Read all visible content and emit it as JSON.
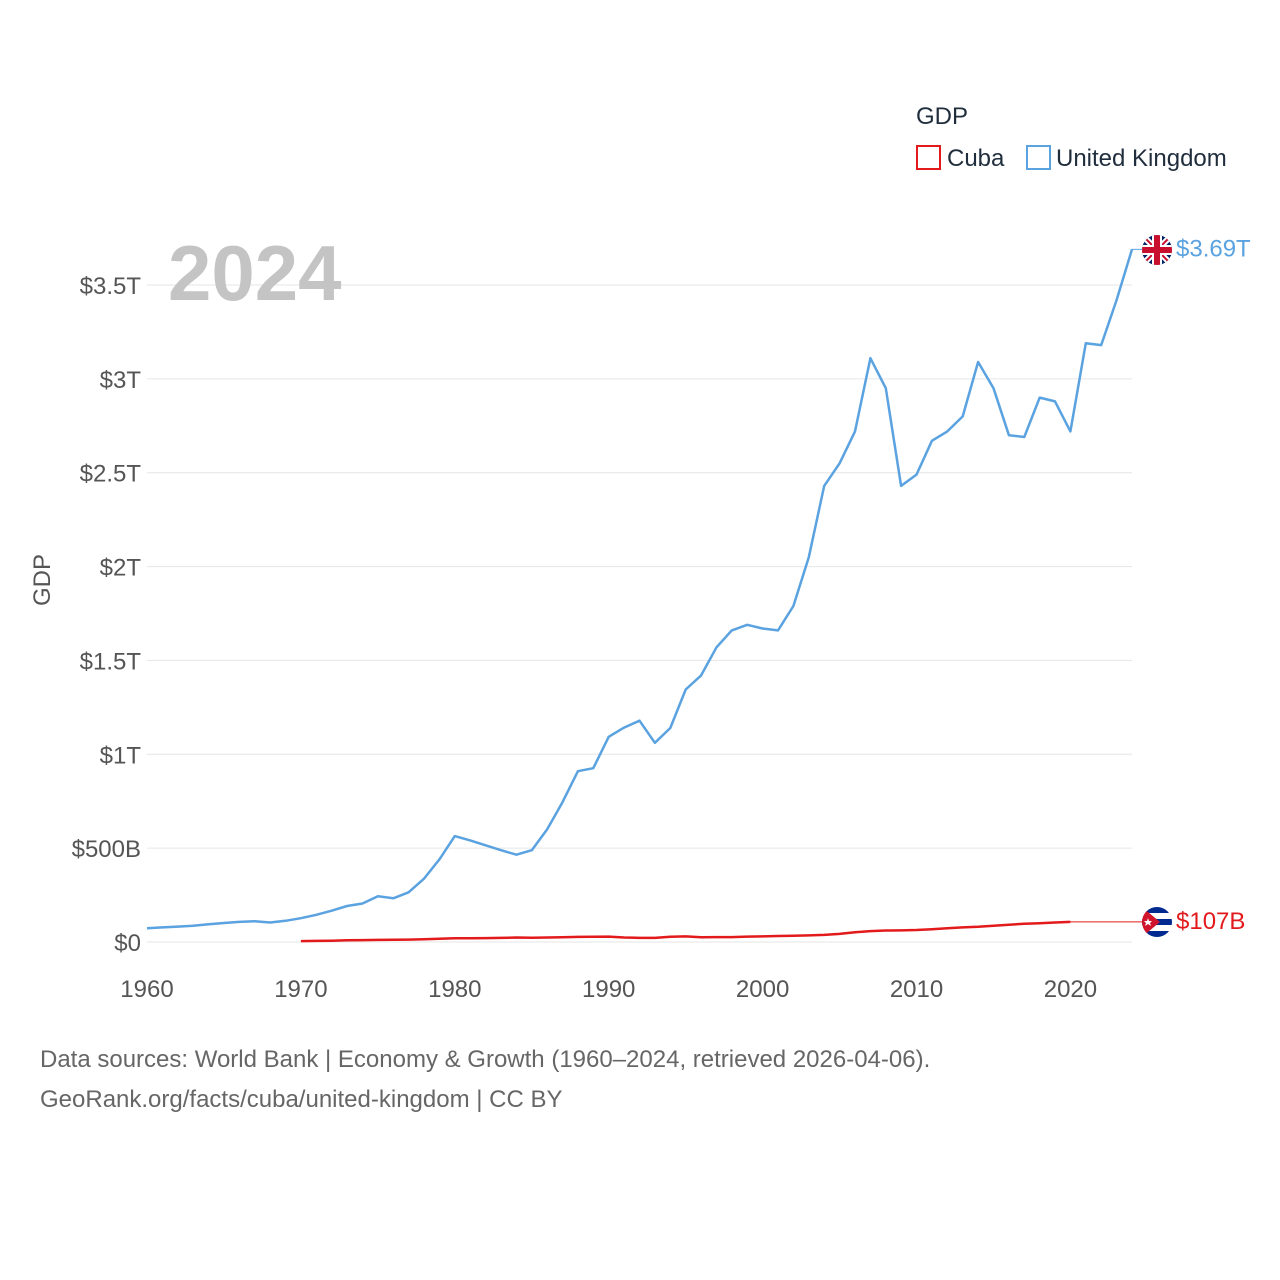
{
  "chart_data": {
    "type": "line",
    "title": "",
    "legend_title": "GDP",
    "legend_position": "top-right",
    "year_label": "2024",
    "ylabel": "GDP",
    "xlabel": "",
    "xlim": [
      1960,
      2024
    ],
    "ylim": [
      0,
      3.8
    ],
    "x_ticks": [
      1960,
      1970,
      1980,
      1990,
      2000,
      2010,
      2020
    ],
    "x_tick_labels": [
      "1960",
      "1970",
      "1980",
      "1990",
      "2000",
      "2010",
      "2020"
    ],
    "y_ticks": [
      0,
      0.5,
      1,
      1.5,
      2,
      2.5,
      3,
      3.5
    ],
    "y_tick_labels": [
      "$0",
      "$500B",
      "$1T",
      "$1.5T",
      "$2T",
      "$2.5T",
      "$3T",
      "$3.5T"
    ],
    "units": "trillion USD",
    "series": [
      {
        "name": "Cuba",
        "color": "#e31a1c",
        "end_label": "$107B",
        "end_value": 0.107,
        "flag": "cuba-flag-icon",
        "x": [
          1970,
          1971,
          1972,
          1973,
          1974,
          1975,
          1976,
          1977,
          1978,
          1979,
          1980,
          1981,
          1982,
          1983,
          1984,
          1985,
          1986,
          1987,
          1988,
          1989,
          1990,
          1991,
          1992,
          1993,
          1994,
          1995,
          1996,
          1997,
          1998,
          1999,
          2000,
          2001,
          2002,
          2003,
          2004,
          2005,
          2006,
          2007,
          2008,
          2009,
          2010,
          2011,
          2012,
          2013,
          2014,
          2015,
          2016,
          2017,
          2018,
          2019,
          2020
        ],
        "values": [
          0.005,
          0.006,
          0.007,
          0.009,
          0.01,
          0.011,
          0.012,
          0.013,
          0.015,
          0.017,
          0.02,
          0.02,
          0.021,
          0.022,
          0.024,
          0.023,
          0.024,
          0.025,
          0.027,
          0.028,
          0.029,
          0.024,
          0.022,
          0.022,
          0.028,
          0.03,
          0.025,
          0.026,
          0.026,
          0.029,
          0.03,
          0.032,
          0.033,
          0.035,
          0.038,
          0.043,
          0.052,
          0.058,
          0.061,
          0.062,
          0.064,
          0.068,
          0.073,
          0.078,
          0.081,
          0.087,
          0.092,
          0.097,
          0.1,
          0.104,
          0.107
        ]
      },
      {
        "name": "United Kingdom",
        "color": "#5aa2e0",
        "end_label": "$3.69T",
        "end_value": 3.69,
        "flag": "uk-flag-icon",
        "x": [
          1960,
          1961,
          1962,
          1963,
          1964,
          1965,
          1966,
          1967,
          1968,
          1969,
          1970,
          1971,
          1972,
          1973,
          1974,
          1975,
          1976,
          1977,
          1978,
          1979,
          1980,
          1981,
          1982,
          1983,
          1984,
          1985,
          1986,
          1987,
          1988,
          1989,
          1990,
          1991,
          1992,
          1993,
          1994,
          1995,
          1996,
          1997,
          1998,
          1999,
          2000,
          2001,
          2002,
          2003,
          2004,
          2005,
          2006,
          2007,
          2008,
          2009,
          2010,
          2011,
          2012,
          2013,
          2014,
          2015,
          2016,
          2017,
          2018,
          2019,
          2020,
          2021,
          2022,
          2023,
          2024
        ],
        "values": [
          0.073,
          0.078,
          0.082,
          0.087,
          0.095,
          0.101,
          0.107,
          0.111,
          0.104,
          0.113,
          0.127,
          0.145,
          0.167,
          0.192,
          0.205,
          0.244,
          0.233,
          0.265,
          0.337,
          0.44,
          0.564,
          0.541,
          0.515,
          0.489,
          0.465,
          0.489,
          0.601,
          0.745,
          0.91,
          0.926,
          1.093,
          1.142,
          1.179,
          1.061,
          1.14,
          1.345,
          1.42,
          1.57,
          1.66,
          1.69,
          1.67,
          1.66,
          1.79,
          2.05,
          2.43,
          2.55,
          2.72,
          3.11,
          2.95,
          2.43,
          2.49,
          2.67,
          2.72,
          2.8,
          3.09,
          2.95,
          2.7,
          2.69,
          2.9,
          2.88,
          2.72,
          3.19,
          3.18,
          3.42,
          3.69
        ]
      }
    ]
  },
  "footer": {
    "line1": "Data sources: World Bank | Economy & Growth (1960–2024, retrieved 2026-04-06).",
    "line2": "GeoRank.org/facts/cuba/united-kingdom | CC BY"
  }
}
